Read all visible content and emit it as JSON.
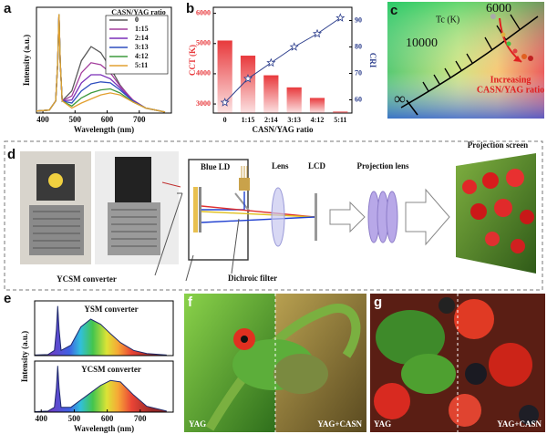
{
  "chart_data": [
    {
      "type": "line",
      "xlabel": "Wavelength (nm)",
      "ylabel": "Intensity (a.u.)",
      "legend_title": "CASN/YAG ratio",
      "legend": "upper right",
      "x": [
        380,
        420,
        440,
        446,
        450,
        454,
        460,
        490,
        520,
        550,
        580,
        610,
        640,
        680,
        720,
        780
      ],
      "xlim": [
        380,
        800
      ],
      "xticks": [
        400,
        500,
        600,
        700
      ],
      "ylim": [
        0,
        1.05
      ],
      "series": [
        {
          "name": "0",
          "color": "#5a5a5a",
          "values": [
            0.02,
            0.03,
            0.12,
            0.5,
            0.98,
            0.5,
            0.12,
            0.22,
            0.52,
            0.66,
            0.6,
            0.45,
            0.28,
            0.12,
            0.05,
            0.01
          ]
        },
        {
          "name": "1:15",
          "color": "#a23c9c",
          "values": [
            0.02,
            0.03,
            0.12,
            0.5,
            0.98,
            0.5,
            0.12,
            0.17,
            0.4,
            0.5,
            0.48,
            0.4,
            0.27,
            0.13,
            0.05,
            0.01
          ]
        },
        {
          "name": "2:14",
          "color": "#7a2fb8",
          "values": [
            0.02,
            0.03,
            0.12,
            0.5,
            0.98,
            0.5,
            0.12,
            0.13,
            0.3,
            0.38,
            0.38,
            0.34,
            0.25,
            0.12,
            0.05,
            0.01
          ]
        },
        {
          "name": "3:13",
          "color": "#2f4fbf",
          "values": [
            0.02,
            0.03,
            0.12,
            0.5,
            0.98,
            0.5,
            0.12,
            0.1,
            0.22,
            0.29,
            0.31,
            0.3,
            0.23,
            0.12,
            0.05,
            0.01
          ]
        },
        {
          "name": "4:12",
          "color": "#3d9a3d",
          "values": [
            0.02,
            0.03,
            0.12,
            0.5,
            0.98,
            0.5,
            0.12,
            0.07,
            0.15,
            0.2,
            0.23,
            0.24,
            0.2,
            0.11,
            0.05,
            0.01
          ]
        },
        {
          "name": "5:11",
          "color": "#e2a030",
          "values": [
            0.02,
            0.03,
            0.12,
            0.5,
            0.98,
            0.5,
            0.12,
            0.05,
            0.1,
            0.14,
            0.18,
            0.2,
            0.18,
            0.11,
            0.05,
            0.01
          ]
        }
      ]
    },
    {
      "type": "bar",
      "xlabel": "CASN/YAG ratio",
      "ylabel": "CCT (K)",
      "y2label": "CRI",
      "categories": [
        "0",
        "1:15",
        "2:14",
        "3:13",
        "4:12",
        "5:11"
      ],
      "ylim": [
        2700,
        6200
      ],
      "yticks": [
        3000,
        4000,
        5000,
        6000
      ],
      "y2lim": [
        55,
        95
      ],
      "y2ticks": [
        60,
        70,
        80,
        90
      ],
      "series": [
        {
          "color": "#e8393c",
          "values": [
            5100,
            4600,
            3950,
            3550,
            3200,
            2750
          ]
        },
        {
          "color": "#2c3e8c",
          "axis": "y2",
          "values": [
            59,
            68,
            74,
            80,
            85,
            91
          ]
        }
      ]
    },
    {
      "type": "area",
      "xlabel": "Wavelength (nm)",
      "ylabel": "Intensity (a.u.)",
      "x": [
        380,
        420,
        440,
        446,
        450,
        454,
        460,
        490,
        520,
        550,
        580,
        610,
        640,
        680,
        720,
        780
      ],
      "xlim": [
        380,
        800
      ],
      "xticks": [
        400,
        500,
        600,
        700
      ],
      "ylim": [
        0,
        1.05
      ],
      "series": [
        {
          "name": "YSM converter",
          "color": "#1f2a6b",
          "values": [
            0.01,
            0.02,
            0.1,
            0.5,
            0.95,
            0.5,
            0.1,
            0.2,
            0.55,
            0.7,
            0.6,
            0.42,
            0.25,
            0.1,
            0.04,
            0.01
          ]
        },
        {
          "name": "YCSM converter",
          "color": "#1f2a6b",
          "values": [
            0.01,
            0.02,
            0.1,
            0.5,
            0.95,
            0.5,
            0.1,
            0.1,
            0.25,
            0.4,
            0.55,
            0.65,
            0.62,
            0.35,
            0.12,
            0.02
          ]
        }
      ]
    }
  ],
  "panel_labels": [
    "a",
    "b",
    "c",
    "d",
    "e",
    "f",
    "g"
  ],
  "cie": {
    "tc_label": "Tc (K)",
    "locus_labels": [
      "6000",
      "10000",
      "∞"
    ],
    "arrow_label": [
      "Increasing",
      "CASN/YAG ratio"
    ]
  },
  "setup": {
    "blue_ld": "Blue LD",
    "lens": "Lens",
    "lcd": "LCD",
    "projection_lens": "Projection lens",
    "projection_screen": "Projection screen",
    "converter": "YCSM converter",
    "dichroic": "Dichroic filter"
  },
  "photos": {
    "f": [
      "YAG",
      "YAG+CASN"
    ],
    "g": [
      "YAG",
      "YAG+CASN"
    ]
  }
}
